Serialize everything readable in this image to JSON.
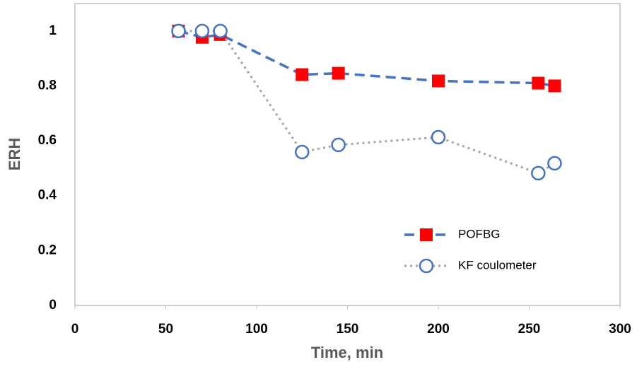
{
  "chart_data": {
    "type": "line",
    "x_label": "Time, min",
    "y_label": "ERH",
    "xlim": [
      0,
      300
    ],
    "xticks": [
      0,
      50,
      100,
      150,
      200,
      250,
      300
    ],
    "ylim": [
      0,
      1.1
    ],
    "yticks": [
      0,
      0.2,
      0.4,
      0.6,
      0.8,
      1
    ],
    "legend": "lower right",
    "grid": false,
    "series": [
      {
        "name": "POFBG",
        "color": "#4472c4",
        "marker_color": "#ff0000",
        "marker": "square",
        "dash": "dashed",
        "x": [
          57,
          70,
          80,
          125,
          145,
          200,
          255,
          264
        ],
        "values": [
          1.0,
          0.977,
          0.987,
          0.841,
          0.846,
          0.818,
          0.81,
          0.8
        ]
      },
      {
        "name": "KF coulometer",
        "color": "#a5a5a5",
        "marker_color": "#4472c4",
        "marker": "circle",
        "dash": "dotted",
        "x": [
          57,
          70,
          80,
          125,
          145,
          200,
          255,
          264
        ],
        "values": [
          1.0,
          1.0,
          1.0,
          0.559,
          0.585,
          0.613,
          0.482,
          0.518
        ]
      }
    ]
  }
}
